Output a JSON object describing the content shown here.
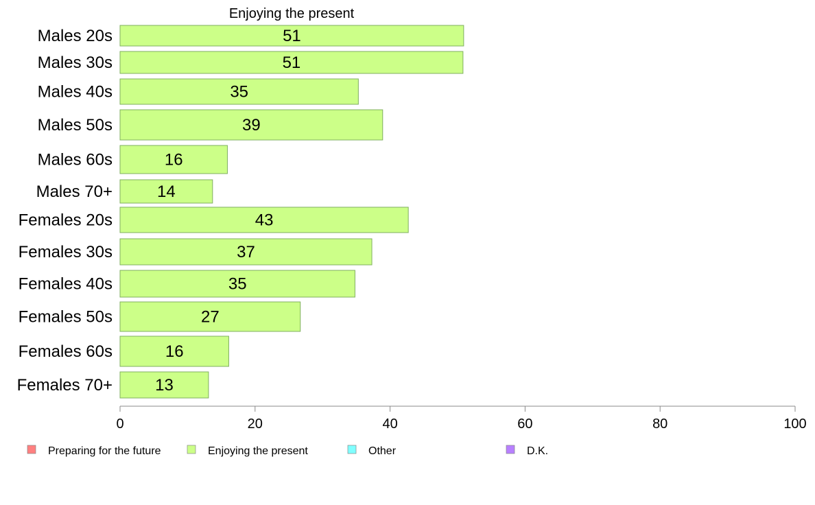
{
  "chart_data": {
    "type": "bar",
    "orientation": "horizontal",
    "title": "Enjoying the present",
    "categories": [
      "Males 20s",
      "Males 30s",
      "Males 40s",
      "Males 50s",
      "Males 60s",
      "Males 70+",
      "Females 20s",
      "Females 30s",
      "Females 40s",
      "Females 50s",
      "Females 60s",
      "Females 70+"
    ],
    "values": [
      50.9,
      50.8,
      35.3,
      38.9,
      15.9,
      13.7,
      42.7,
      37.3,
      34.8,
      26.7,
      16.1,
      13.1
    ],
    "labels": [
      "51",
      "51",
      "35",
      "39",
      "16",
      "14",
      "43",
      "37",
      "35",
      "27",
      "16",
      "13"
    ],
    "xlim": [
      0,
      100
    ],
    "xticks": [
      "0",
      "20",
      "40",
      "60",
      "80",
      "100"
    ],
    "xtick_values": [
      0,
      20,
      40,
      60,
      80,
      100
    ],
    "xlabel": "",
    "ylabel": "",
    "grid": false,
    "bar_color": "#CCFF88",
    "bar_edge": "#7FAF5F",
    "legend": {
      "position": "bottom",
      "entries": [
        {
          "label": "Preparing for the future",
          "color": "#FF8080"
        },
        {
          "label": "Enjoying the present",
          "color": "#CCFF88"
        },
        {
          "label": "Other",
          "color": "#80FFFF"
        },
        {
          "label": "D.K.",
          "color": "#B880FF"
        }
      ]
    }
  }
}
